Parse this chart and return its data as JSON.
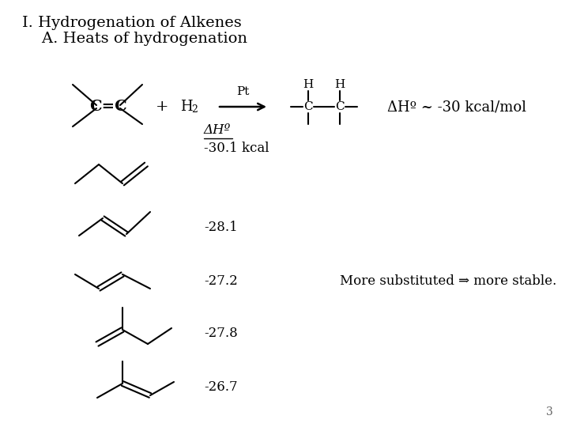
{
  "bg_color": "#ffffff",
  "title_line1": "I. Hydrogenation of Alkenes",
  "title_line2": "    A. Heats of hydrogenation",
  "reaction_label": "ΔHº ~ -30 kcal/mol",
  "dho_label": "ΔHº",
  "entries": [
    {
      "value": "-30.1 kcal"
    },
    {
      "value": "-28.1"
    },
    {
      "value": "-27.2"
    },
    {
      "value": "-27.8"
    },
    {
      "value": "-26.7"
    }
  ],
  "more_sub_text": "More substituted ⇒ more stable.",
  "page_num": "3",
  "font_size_title": 14,
  "font_size_body": 12,
  "font_size_small": 10
}
